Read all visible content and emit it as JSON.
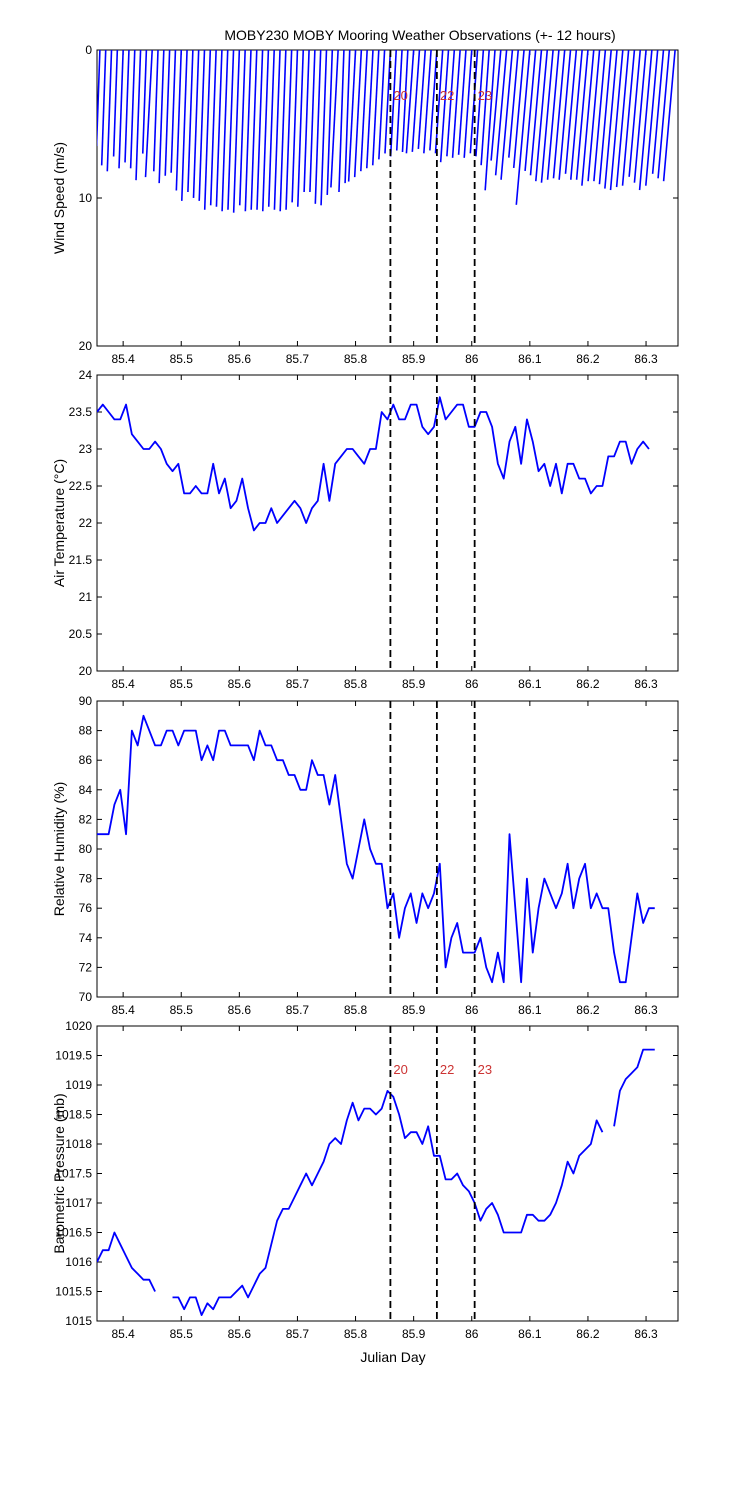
{
  "title": "MOBY230 MOBY Mooring Weather Observations (+- 12 hours)",
  "xlabel": "Julian Day",
  "colors": {
    "line": "#0000ff",
    "marker_label": "#cc3333",
    "axis": "#000000"
  },
  "marker_lines": [
    {
      "x": 85.86,
      "label": "20"
    },
    {
      "x": 85.94,
      "label": "22"
    },
    {
      "x": 86.005,
      "label": "23"
    }
  ],
  "chart_data": [
    {
      "type": "wind-stick",
      "panel": "wind",
      "ylabel": "Wind Speed (m/s)",
      "xlim": [
        85.355,
        86.355
      ],
      "ylim": [
        0,
        20
      ],
      "y_inverted": true,
      "xticks": [
        85.4,
        85.5,
        85.6,
        85.7,
        85.8,
        85.9,
        86,
        86.1,
        86.2,
        86.3
      ],
      "xticklabels": [
        "85.4",
        "85.5",
        "85.6",
        "85.7",
        "85.8",
        "85.9",
        "86",
        "86.1",
        "86.2",
        "86.3"
      ],
      "yticks": [
        0,
        10,
        20
      ],
      "yticklabels": [
        "0",
        "10",
        "20"
      ],
      "marker_labels_shown": true,
      "x": [
        85.36,
        85.37,
        85.38,
        85.39,
        85.4,
        85.41,
        85.42,
        85.43,
        85.44,
        85.45,
        85.46,
        85.47,
        85.48,
        85.49,
        85.5,
        85.51,
        85.52,
        85.53,
        85.54,
        85.55,
        85.56,
        85.57,
        85.58,
        85.59,
        85.6,
        85.61,
        85.62,
        85.63,
        85.64,
        85.65,
        85.66,
        85.67,
        85.68,
        85.69,
        85.7,
        85.71,
        85.72,
        85.73,
        85.74,
        85.75,
        85.76,
        85.77,
        85.78,
        85.79,
        85.8,
        85.81,
        85.82,
        85.83,
        85.84,
        85.85,
        85.86,
        85.87,
        85.88,
        85.89,
        85.9,
        85.91,
        85.92,
        85.93,
        85.94,
        85.95,
        85.96,
        85.97,
        85.98,
        85.99,
        86.0,
        86.01,
        86.02,
        86.03,
        86.04,
        86.05,
        86.06,
        86.07,
        86.08,
        86.09,
        86.1,
        86.11,
        86.12,
        86.13,
        86.14,
        86.15,
        86.16,
        86.17,
        86.18,
        86.19,
        86.2,
        86.21,
        86.22,
        86.23,
        86.24,
        86.25,
        86.26,
        86.27,
        86.28,
        86.29,
        86.3,
        86.31,
        86.32,
        86.33,
        86.34,
        86.35
      ],
      "speed": [
        6.5,
        7.8,
        8.2,
        7.2,
        8.0,
        7.6,
        8.0,
        8.8,
        7.0,
        8.6,
        8.2,
        9.0,
        8.5,
        8.3,
        9.5,
        10.2,
        9.6,
        10.0,
        10.2,
        10.8,
        10.5,
        10.6,
        10.9,
        10.8,
        11.0,
        10.5,
        10.9,
        10.8,
        10.8,
        10.9,
        10.6,
        10.8,
        10.9,
        10.8,
        10.3,
        10.6,
        9.6,
        9.6,
        10.4,
        10.5,
        9.8,
        9.3,
        9.6,
        9.0,
        8.9,
        8.6,
        8.2,
        8.0,
        7.8,
        7.4,
        7.0,
        7.2,
        6.8,
        6.9,
        7.0,
        6.9,
        6.7,
        7.0,
        6.8,
        7.0,
        7.6,
        7.2,
        7.3,
        7.1,
        7.3,
        7.0,
        7.2,
        7.8,
        9.5,
        7.5,
        8.5,
        8.8,
        7.3,
        8.0,
        10.5,
        8.2,
        8.5,
        8.9,
        9.0,
        8.8,
        8.7,
        8.8,
        8.4,
        8.8,
        8.8,
        9.2,
        8.9,
        8.9,
        9.1,
        9.4,
        9.5,
        9.3,
        9.2,
        8.6,
        9.0,
        9.5,
        9.2,
        8.4,
        8.7,
        8.9
      ],
      "direction_deg": [
        2,
        2,
        2,
        2,
        2,
        2,
        2,
        2,
        2,
        3,
        2,
        2,
        2,
        2,
        2,
        2,
        2,
        2,
        2,
        2,
        2,
        2,
        2,
        2,
        2,
        2,
        2,
        2,
        2,
        2,
        2,
        2,
        2,
        2,
        2,
        2,
        2,
        2,
        2,
        2,
        2,
        3,
        2,
        2,
        3,
        3,
        3,
        3,
        3,
        3,
        3,
        3,
        3,
        3,
        4,
        4,
        4,
        4,
        4,
        4,
        4,
        4,
        4,
        4,
        4,
        4,
        4,
        4,
        4,
        5,
        5,
        5,
        5,
        5,
        5,
        5,
        5,
        5,
        5,
        5,
        5,
        5,
        5,
        5,
        5,
        5,
        5,
        5,
        5,
        5,
        5,
        5,
        5,
        5,
        5,
        5,
        5,
        5,
        5,
        5
      ]
    },
    {
      "type": "line",
      "panel": "air_temperature",
      "ylabel": "Air Temperature (°C)",
      "xlim": [
        85.355,
        86.355
      ],
      "ylim": [
        20,
        24
      ],
      "xticks": [
        85.4,
        85.5,
        85.6,
        85.7,
        85.8,
        85.9,
        86,
        86.1,
        86.2,
        86.3
      ],
      "xticklabels": [
        "85.4",
        "85.5",
        "85.6",
        "85.7",
        "85.8",
        "85.9",
        "86",
        "86.1",
        "86.2",
        "86.3"
      ],
      "yticks": [
        20,
        20.5,
        21,
        21.5,
        22,
        22.5,
        23,
        23.5,
        24
      ],
      "yticklabels": [
        "20",
        "20.5",
        "21",
        "21.5",
        "22",
        "22.5",
        "23",
        "23.5",
        "24"
      ],
      "x": [
        85.355,
        85.365,
        85.375,
        85.385,
        85.395,
        85.405,
        85.415,
        85.425,
        85.435,
        85.445,
        85.455,
        85.465,
        85.475,
        85.485,
        85.495,
        85.505,
        85.515,
        85.525,
        85.535,
        85.545,
        85.555,
        85.565,
        85.575,
        85.585,
        85.595,
        85.605,
        85.615,
        85.625,
        85.635,
        85.645,
        85.655,
        85.665,
        85.675,
        85.685,
        85.695,
        85.705,
        85.715,
        85.725,
        85.735,
        85.745,
        85.755,
        85.765,
        85.775,
        85.785,
        85.795,
        85.805,
        85.815,
        85.825,
        85.835,
        85.845,
        85.855,
        85.865,
        85.875,
        85.885,
        85.895,
        85.905,
        85.915,
        85.925,
        85.935,
        85.945,
        85.955,
        85.965,
        85.975,
        85.985,
        85.995,
        86.005,
        86.015,
        86.025,
        86.035,
        86.045,
        86.055,
        86.065,
        86.075,
        86.085,
        86.095,
        86.105,
        86.115,
        86.125,
        86.135,
        86.145,
        86.155,
        86.165,
        86.175,
        86.185,
        86.195,
        86.205,
        86.215,
        86.225,
        86.235,
        86.245,
        86.255,
        86.265,
        86.275,
        86.285,
        86.295,
        86.305,
        86.315,
        86.325,
        86.335,
        86.345,
        86.355
      ],
      "y": [
        23.5,
        23.6,
        23.5,
        23.4,
        23.4,
        23.6,
        23.2,
        23.1,
        23.0,
        23.0,
        23.1,
        23.0,
        22.8,
        22.7,
        22.8,
        22.4,
        22.4,
        22.5,
        22.4,
        22.4,
        22.8,
        22.4,
        22.6,
        22.2,
        22.3,
        22.6,
        22.2,
        21.9,
        22.0,
        22.0,
        22.2,
        22.0,
        22.1,
        22.2,
        22.3,
        22.2,
        22.0,
        22.2,
        22.3,
        22.8,
        22.3,
        22.8,
        22.9,
        23.0,
        23.0,
        22.9,
        22.8,
        23.0,
        23.0,
        23.5,
        23.4,
        23.6,
        23.4,
        23.4,
        23.6,
        23.6,
        23.3,
        23.2,
        23.3,
        23.7,
        23.4,
        23.5,
        23.6,
        23.6,
        23.3,
        23.3,
        23.5,
        23.5,
        23.3,
        22.8,
        22.6,
        23.1,
        23.3,
        22.8,
        23.4,
        23.1,
        22.7,
        22.8,
        22.5,
        22.8,
        22.4,
        22.8,
        22.8,
        22.6,
        22.6,
        22.4,
        22.5,
        22.5,
        22.9,
        22.9,
        23.1,
        23.1,
        22.8,
        23.0,
        23.1,
        23.0,
        null,
        null,
        null,
        null,
        null
      ]
    },
    {
      "type": "line",
      "panel": "relative_humidity",
      "ylabel": "Relative Humidity (%)",
      "xlim": [
        85.355,
        86.355
      ],
      "ylim": [
        70,
        90
      ],
      "xticks": [
        85.4,
        85.5,
        85.6,
        85.7,
        85.8,
        85.9,
        86,
        86.1,
        86.2,
        86.3
      ],
      "xticklabels": [
        "85.4",
        "85.5",
        "85.6",
        "85.7",
        "85.8",
        "85.9",
        "86",
        "86.1",
        "86.2",
        "86.3"
      ],
      "yticks": [
        70,
        72,
        74,
        76,
        78,
        80,
        82,
        84,
        86,
        88,
        90
      ],
      "yticklabels": [
        "70",
        "72",
        "74",
        "76",
        "78",
        "80",
        "82",
        "84",
        "86",
        "88",
        "90"
      ],
      "x": [
        85.355,
        85.365,
        85.375,
        85.385,
        85.395,
        85.405,
        85.415,
        85.425,
        85.435,
        85.445,
        85.455,
        85.465,
        85.475,
        85.485,
        85.495,
        85.505,
        85.515,
        85.525,
        85.535,
        85.545,
        85.555,
        85.565,
        85.575,
        85.585,
        85.595,
        85.605,
        85.615,
        85.625,
        85.635,
        85.645,
        85.655,
        85.665,
        85.675,
        85.685,
        85.695,
        85.705,
        85.715,
        85.725,
        85.735,
        85.745,
        85.755,
        85.765,
        85.775,
        85.785,
        85.795,
        85.805,
        85.815,
        85.825,
        85.835,
        85.845,
        85.855,
        85.865,
        85.875,
        85.885,
        85.895,
        85.905,
        85.915,
        85.925,
        85.935,
        85.945,
        85.955,
        85.965,
        85.975,
        85.985,
        85.995,
        86.005,
        86.015,
        86.025,
        86.035,
        86.045,
        86.055,
        86.065,
        86.075,
        86.085,
        86.095,
        86.105,
        86.115,
        86.125,
        86.135,
        86.145,
        86.155,
        86.165,
        86.175,
        86.185,
        86.195,
        86.205,
        86.215,
        86.225,
        86.235,
        86.245,
        86.255,
        86.265,
        86.275,
        86.285,
        86.295,
        86.305,
        86.315,
        86.325,
        86.335,
        86.345,
        86.355
      ],
      "y": [
        81,
        81,
        81,
        83,
        84,
        81,
        88,
        87,
        89,
        88,
        87,
        87,
        88,
        88,
        87,
        88,
        88,
        88,
        86,
        87,
        86,
        88,
        88,
        87,
        87,
        87,
        87,
        86,
        88,
        87,
        87,
        86,
        86,
        85,
        85,
        84,
        84,
        86,
        85,
        85,
        83,
        85,
        82,
        79,
        78,
        80,
        82,
        80,
        79,
        79,
        76,
        77,
        74,
        76,
        77,
        75,
        77,
        76,
        77,
        79,
        72,
        74,
        75,
        73,
        73,
        73,
        74,
        72,
        71,
        73,
        71,
        81,
        76,
        71,
        78,
        73,
        76,
        78,
        77,
        76,
        77,
        79,
        76,
        78,
        79,
        76,
        77,
        76,
        76,
        73,
        71,
        71,
        74,
        77,
        75,
        76,
        76,
        null,
        null,
        null,
        null
      ]
    },
    {
      "type": "line",
      "panel": "barometric_pressure",
      "ylabel": "Barometric Pressure (mb)",
      "xlim": [
        85.355,
        86.355
      ],
      "ylim": [
        1015,
        1020
      ],
      "xticks": [
        85.4,
        85.5,
        85.6,
        85.7,
        85.8,
        85.9,
        86,
        86.1,
        86.2,
        86.3
      ],
      "xticklabels": [
        "85.4",
        "85.5",
        "85.6",
        "85.7",
        "85.8",
        "85.9",
        "86",
        "86.1",
        "86.2",
        "86.3"
      ],
      "yticks": [
        1015,
        1015.5,
        1016,
        1016.5,
        1017,
        1017.5,
        1018,
        1018.5,
        1019,
        1019.5,
        1020
      ],
      "yticklabels": [
        "1015",
        "1015.5",
        "1016",
        "1016.5",
        "1017",
        "1017.5",
        "1018",
        "1018.5",
        "1019",
        "1019.5",
        "1020"
      ],
      "marker_labels_shown": true,
      "x": [
        85.355,
        85.365,
        85.375,
        85.385,
        85.395,
        85.405,
        85.415,
        85.425,
        85.435,
        85.445,
        85.455,
        85.465,
        85.475,
        85.485,
        85.495,
        85.505,
        85.515,
        85.525,
        85.535,
        85.545,
        85.555,
        85.565,
        85.575,
        85.585,
        85.595,
        85.605,
        85.615,
        85.625,
        85.635,
        85.645,
        85.655,
        85.665,
        85.675,
        85.685,
        85.695,
        85.705,
        85.715,
        85.725,
        85.735,
        85.745,
        85.755,
        85.765,
        85.775,
        85.785,
        85.795,
        85.805,
        85.815,
        85.825,
        85.835,
        85.845,
        85.855,
        85.865,
        85.875,
        85.885,
        85.895,
        85.905,
        85.915,
        85.925,
        85.935,
        85.945,
        85.955,
        85.965,
        85.975,
        85.985,
        85.995,
        86.005,
        86.015,
        86.025,
        86.035,
        86.045,
        86.055,
        86.065,
        86.075,
        86.085,
        86.095,
        86.105,
        86.115,
        86.125,
        86.135,
        86.145,
        86.155,
        86.165,
        86.175,
        86.185,
        86.195,
        86.205,
        86.215,
        86.225,
        86.235,
        86.245,
        86.255,
        86.265,
        86.275,
        86.285,
        86.295,
        86.305,
        86.315,
        86.325,
        86.335,
        86.345,
        86.355
      ],
      "y": [
        1016.0,
        1016.2,
        1016.2,
        1016.5,
        1016.3,
        1016.1,
        1015.9,
        1015.8,
        1015.7,
        1015.7,
        1015.5,
        null,
        null,
        1015.4,
        1015.4,
        1015.2,
        1015.4,
        1015.4,
        1015.1,
        1015.3,
        1015.2,
        1015.4,
        1015.4,
        1015.4,
        1015.5,
        1015.6,
        1015.4,
        1015.6,
        1015.8,
        1015.9,
        1016.3,
        1016.7,
        1016.9,
        1016.9,
        1017.1,
        1017.3,
        1017.5,
        1017.3,
        1017.5,
        1017.7,
        1018.0,
        1018.1,
        1018.0,
        1018.4,
        1018.7,
        1018.4,
        1018.6,
        1018.6,
        1018.5,
        1018.6,
        1018.9,
        1018.8,
        1018.5,
        1018.1,
        1018.2,
        1018.2,
        1018.0,
        1018.3,
        1017.8,
        1017.8,
        1017.4,
        1017.4,
        1017.5,
        1017.3,
        1017.2,
        1017.0,
        1016.7,
        1016.9,
        1017.0,
        1016.8,
        1016.5,
        1016.5,
        1016.5,
        1016.5,
        1016.8,
        1016.8,
        1016.7,
        1016.7,
        1016.8,
        1017.0,
        1017.3,
        1017.7,
        1017.5,
        1017.8,
        1017.9,
        1018.0,
        1018.4,
        1018.2,
        null,
        1018.3,
        1018.9,
        1019.1,
        1019.2,
        1019.3,
        1019.6,
        1019.6,
        1019.6,
        null,
        null,
        null,
        null
      ]
    }
  ]
}
